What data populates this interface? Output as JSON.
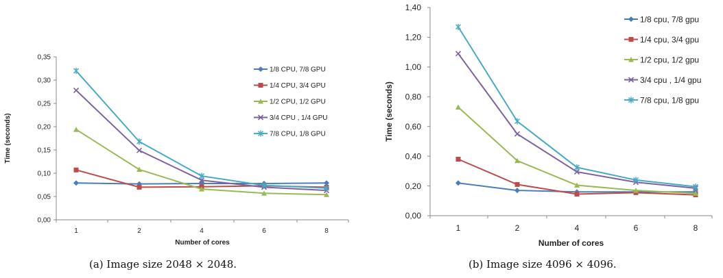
{
  "colors": {
    "series": [
      "#4A7EBB",
      "#BE4B48",
      "#98B954",
      "#7D60A0",
      "#46AAC5"
    ],
    "axis": "#888888",
    "text": "#222222"
  },
  "captions": {
    "a": "(a)  Image size 2048 × 2048.",
    "b": "(b)  Image size 4096 × 4096."
  },
  "chart_data": [
    {
      "type": "line",
      "categories": [
        "1",
        "2",
        "4",
        "6",
        "8"
      ],
      "xlabel": "Number of cores",
      "ylabel": "Time (seconds)",
      "ylim": [
        0,
        0.35
      ],
      "yticks": [
        "0,00",
        "0,05",
        "0,10",
        "0,15",
        "0,20",
        "0,25",
        "0,30",
        "0,35"
      ],
      "grid": false,
      "legend_position": "right",
      "series": [
        {
          "name": "1/8 CPU, 7/8 GPU",
          "marker": "diamond",
          "values": [
            0.079,
            0.077,
            0.078,
            0.078,
            0.079
          ]
        },
        {
          "name": "1/4 CPU, 3/4 GPU",
          "marker": "square",
          "values": [
            0.107,
            0.07,
            0.071,
            0.073,
            0.07
          ]
        },
        {
          "name": "1/2 CPU, 1/2 GPU",
          "marker": "triangle",
          "values": [
            0.194,
            0.108,
            0.066,
            0.057,
            0.054
          ]
        },
        {
          "name": "3/4 CPU , 1/4 GPU",
          "marker": "x",
          "values": [
            0.278,
            0.149,
            0.085,
            0.07,
            0.063
          ]
        },
        {
          "name": "7/8 CPU, 1/8 GPU",
          "marker": "star",
          "values": [
            0.32,
            0.168,
            0.094,
            0.074,
            0.068
          ]
        }
      ]
    },
    {
      "type": "line",
      "categories": [
        "1",
        "2",
        "4",
        "6",
        "8"
      ],
      "xlabel": "Number of cores",
      "ylabel": "Time (seconds)",
      "ylim": [
        0,
        1.4
      ],
      "yticks": [
        "0,00",
        "0,20",
        "0,40",
        "0,60",
        "0,80",
        "1,00",
        "1,20",
        "1,40"
      ],
      "grid": false,
      "legend_position": "right",
      "series": [
        {
          "name": "1/8 cpu, 7/8 gpu",
          "marker": "diamond",
          "values": [
            0.22,
            0.17,
            0.16,
            0.16,
            0.16
          ]
        },
        {
          "name": "1/4 cpu, 3/4 gpu",
          "marker": "square",
          "values": [
            0.38,
            0.21,
            0.145,
            0.155,
            0.14
          ]
        },
        {
          "name": "1/2 cpu, 1/2 gpu",
          "marker": "triangle",
          "values": [
            0.73,
            0.37,
            0.205,
            0.17,
            0.15
          ]
        },
        {
          "name": "3/4 cpu , 1/4 gpu",
          "marker": "x",
          "values": [
            1.09,
            0.55,
            0.295,
            0.225,
            0.185
          ]
        },
        {
          "name": "7/8 cpu, 1/8 gpu",
          "marker": "star",
          "values": [
            1.27,
            0.635,
            0.325,
            0.24,
            0.195
          ]
        }
      ]
    }
  ]
}
